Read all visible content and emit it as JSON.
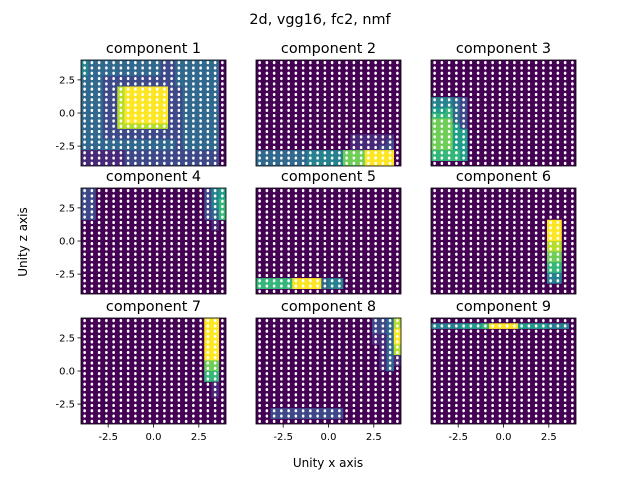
{
  "chart_data": {
    "type": "heatmap",
    "title": "2d, vgg16, fc2, nmf",
    "xlabel": "Unity x axis",
    "ylabel": "Unity z axis",
    "xlim": [
      -4,
      4
    ],
    "ylim": [
      -4,
      4
    ],
    "xticks": [
      "-2.5",
      "0.0",
      "2.5"
    ],
    "yticks": [
      "2.5",
      "0.0",
      "-2.5"
    ],
    "colormap": "viridis",
    "grid": {
      "x": [
        -3.8,
        -3.4,
        -3.0,
        -2.6,
        -2.2,
        -1.8,
        -1.4,
        -1.0,
        -0.6,
        -0.2,
        0.2,
        0.6,
        1.0,
        1.4,
        1.8,
        2.2,
        2.6,
        3.0,
        3.4,
        3.8
      ],
      "y": [
        3.8,
        3.4,
        3.0,
        2.6,
        2.2,
        1.8,
        1.4,
        1.0,
        0.6,
        0.2,
        -0.2,
        -0.6,
        -1.0,
        -1.4,
        -1.8,
        -2.2,
        -2.6,
        -3.0,
        -3.4,
        -3.8
      ]
    },
    "components": [
      {
        "title": "component 1",
        "cells": [
          "43333333333223333330",
          "43333333333223333330",
          "43333333333223333330",
          "33322222222223333330",
          "33322222222223333330",
          "33322899999922333330",
          "33322899999922333330",
          "33322899999922333330",
          "33322899999922333330",
          "33322899999922333330",
          "33322899999922333330",
          "33322899999922333330",
          "33322888888822333330",
          "33322222222222333330",
          "33322222222222333330",
          "33333333333332333330",
          "33333333333332333330",
          "11111122222222222220",
          "11111122222222222220",
          "11111122222222222220"
        ]
      },
      {
        "title": "component 2",
        "cells": [
          "00000000000000000000",
          "00000000000000000000",
          "00000000000000000000",
          "00000000000000000000",
          "00000000000000000000",
          "00000000000000000000",
          "00000000000000000000",
          "00000000000000000000",
          "00000000000000000000",
          "00000000000000000000",
          "00000000000000000000",
          "00000000000000000000",
          "00000000000000000000",
          "00000000000000000000",
          "00000000000001111110",
          "00000000000001111120",
          "00000000000001111220",
          "33333334444477799990",
          "33333334444477799990",
          "33333334444477799990"
        ]
      },
      {
        "title": "component 3",
        "cells": [
          "00000000000000000000",
          "00000000000000000000",
          "00000000000000000000",
          "00000000000000000000",
          "00000000000000000000",
          "00000000000000000000",
          "00000000000000000000",
          "44432000000000000000",
          "44432000000000000000",
          "55632000000000000000",
          "66632000000000000000",
          "77732000000000000000",
          "77752000000000000000",
          "77755000000000000000",
          "77755000000000000000",
          "77755000000000000000",
          "77755000000000000000",
          "66665000000000000000",
          "66665000000000000000",
          "00000000000000000000"
        ]
      },
      {
        "title": "component 4",
        "cells": [
          "22000000000000000245",
          "22000000000000000245",
          "22000000000000000246",
          "22000000000000000246",
          "22000000000000000236",
          "22000000000000000236",
          "00000000000000000010",
          "00000000000000000010",
          "00000000000000000000",
          "00000000000000000000",
          "00000000000000000000",
          "00000000000000000000",
          "00000000000000000000",
          "00000000000000000000",
          "00000000000000000000",
          "00000000000000000000",
          "00000000000000000000",
          "00000000000000000000",
          "00000000000000000000",
          "00000000000000000000"
        ]
      },
      {
        "title": "component 5",
        "cells": [
          "00000000000000000000",
          "00000000000000000000",
          "00000000000000000000",
          "00000000000000000000",
          "00000000000000000000",
          "00000000000000000000",
          "00000000000000000000",
          "00000000000000000000",
          "00000000000000000000",
          "00000000000000000000",
          "00000000000000000000",
          "00000000000000000000",
          "00000000000000000000",
          "00000000000000000000",
          "00000000000000000000",
          "00000000000000000000",
          "00000000000000000000",
          "66666999934400000000",
          "66666999934400000000",
          "00000000000000000000"
        ]
      },
      {
        "title": "component 6",
        "cells": [
          "00000000000000000000",
          "00000000000000000000",
          "00000000000000000000",
          "00000000000000000000",
          "00000000000000000000",
          "00000000000000000000",
          "00000000000000009900",
          "00000000000000009900",
          "00000000000000009900",
          "00000000000000009900",
          "00000000000000008800",
          "00000000000000008800",
          "00000000000000007700",
          "00000000000000007700",
          "00000000000000006600",
          "00000000000000006600",
          "00000000000000004400",
          "00000000000000004400",
          "00000000000000000000",
          "00000000000000000000"
        ]
      },
      {
        "title": "component 7",
        "cells": [
          "00000000000000000990",
          "00000000000000000990",
          "00000000000000000990",
          "00000000000000000990",
          "00000000000000000990",
          "00000000000000000990",
          "00000000000000000990",
          "00000000000000000990",
          "00000000000000000770",
          "00000000000000000770",
          "00000000000000000660",
          "00000000000000000660",
          "00000000000000000010",
          "00000000000000000010",
          "00000000000000000010",
          "00000000000000000000",
          "00000000000000000000",
          "00000000000000000000",
          "00000000000000000000",
          "00000000000000000000"
        ]
      },
      {
        "title": "component 8",
        "cells": [
          "00000000000000002238",
          "00000000000000002238",
          "00000000000000002239",
          "00000000000000001139",
          "00000000000000001139",
          "00000000000000000138",
          "00000000000000000138",
          "00000000000000000131",
          "00000000000000000131",
          "00000000000000000130",
          "00000000000000000000",
          "00000000000000000000",
          "00000000000000000000",
          "00000000000000000000",
          "00000000000000000000",
          "00000000000000000000",
          "00000000000000000000",
          "00222222222200000000",
          "00222222222200000000",
          "00000000000000000000"
        ]
      },
      {
        "title": "component 9",
        "cells": [
          "00000000000000000000",
          "44445556999955554440",
          "00000000000000000000",
          "00000000000000000000",
          "00000000000000000000",
          "00000000000000000000",
          "00000000000000000000",
          "00000000000000000000",
          "00000000000000000000",
          "00000000000000000000",
          "00000000000000000000",
          "00000000000000000000",
          "00000000000000000000",
          "00000000000000000000",
          "00000000000000000000",
          "00000000000000000000",
          "00000000000000000000",
          "00000000000000000000",
          "00000000000000000000",
          "00000000000000000000"
        ]
      }
    ]
  }
}
